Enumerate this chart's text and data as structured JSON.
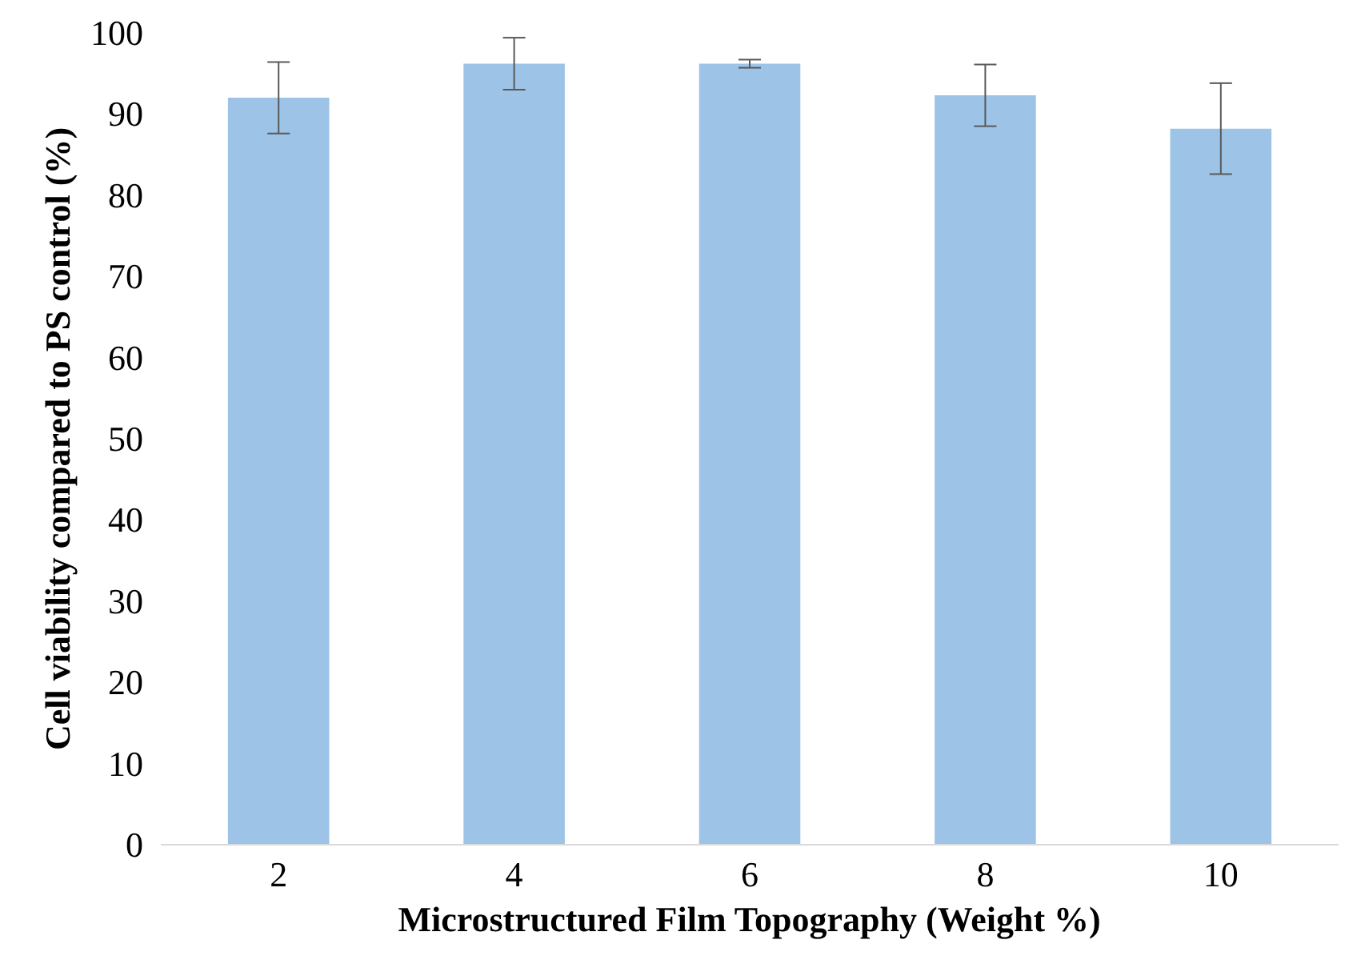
{
  "chart_data": {
    "type": "bar",
    "xlabel": "Microstructured Film Topography (Weight %)",
    "ylabel": "Cell viability compared to PS control (%)",
    "categories": [
      "2",
      "4",
      "6",
      "8",
      "10"
    ],
    "values": [
      92,
      96.2,
      96.2,
      92.3,
      88.2
    ],
    "errors": [
      4.4,
      3.2,
      0.5,
      3.8,
      5.6
    ],
    "color": "#9dc3e6",
    "ylim": [
      0,
      100
    ],
    "yticks": [
      0,
      10,
      20,
      30,
      40,
      50,
      60,
      70,
      80,
      90,
      100
    ],
    "grid": false
  }
}
